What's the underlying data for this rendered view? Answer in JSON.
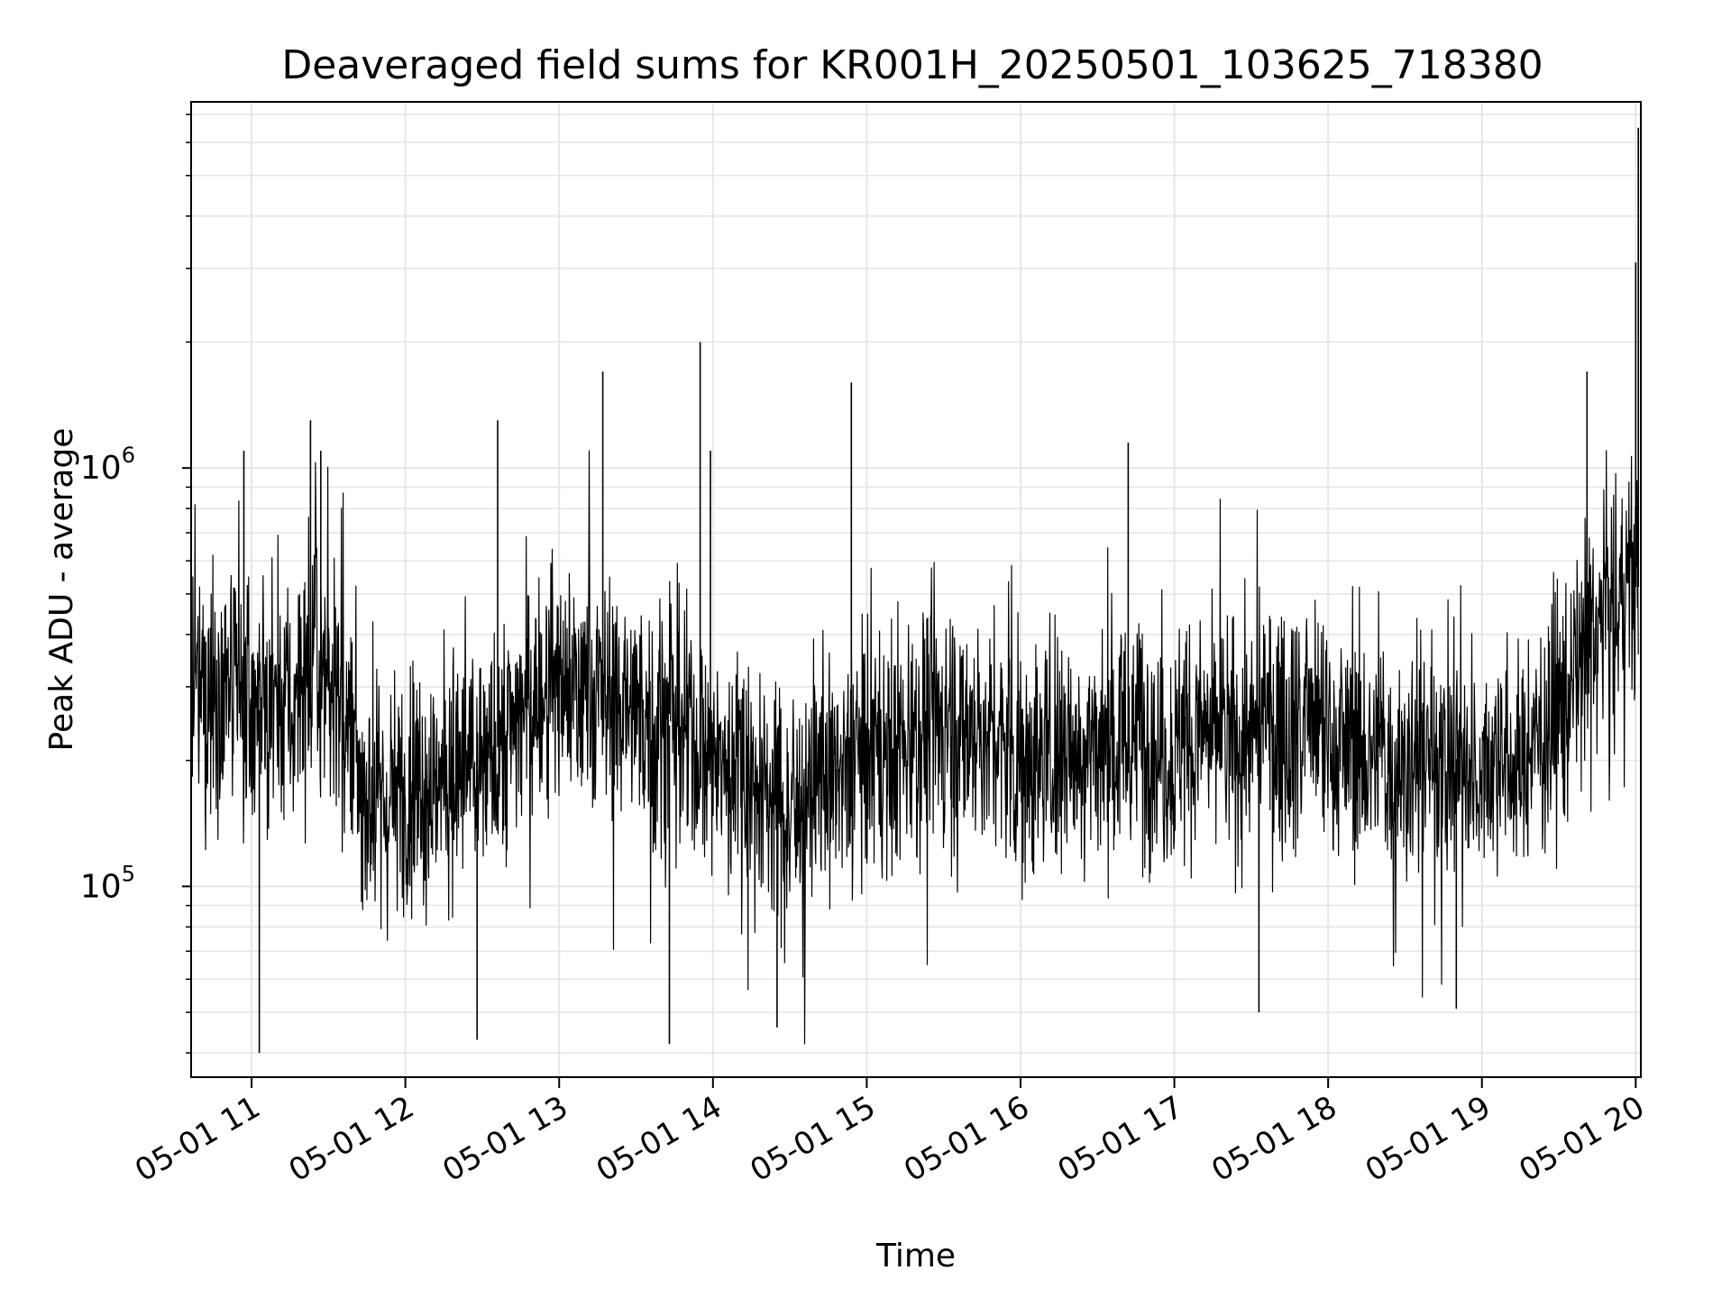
{
  "chart_data": {
    "type": "line",
    "title": "Deaveraged field sums for KR001H_20250501_103625_718380",
    "xlabel": "Time",
    "ylabel": "Peak ADU - average",
    "yscale": "log",
    "xlim": [
      "2025-05-01 10:36:25",
      "2025-05-01 20:02:00"
    ],
    "ylim": [
      35000,
      7500000
    ],
    "grid": true,
    "legend": "none",
    "line_color": "#000000",
    "x_ticks": [
      "05-01 11",
      "05-01 12",
      "05-01 13",
      "05-01 14",
      "05-01 15",
      "05-01 16",
      "05-01 17",
      "05-01 18",
      "05-01 19",
      "05-01 20"
    ],
    "y_ticks": [
      {
        "base": "10",
        "exp": "5",
        "value": 100000
      },
      {
        "base": "10",
        "exp": "6",
        "value": 1000000
      }
    ],
    "series": [
      {
        "x": [
          "2025-05-01 10:36",
          "2025-05-01 10:50",
          "2025-05-01 11:00",
          "2025-05-01 11:10",
          "2025-05-01 11:20",
          "2025-05-01 11:30",
          "2025-05-01 11:40",
          "2025-05-01 11:50",
          "2025-05-01 12:00",
          "2025-05-01 12:15",
          "2025-05-01 12:30",
          "2025-05-01 12:45",
          "2025-05-01 13:00",
          "2025-05-01 13:15",
          "2025-05-01 13:30",
          "2025-05-01 13:45",
          "2025-05-01 14:00",
          "2025-05-01 14:15",
          "2025-05-01 14:30",
          "2025-05-01 14:45",
          "2025-05-01 15:00",
          "2025-05-01 15:15",
          "2025-05-01 15:30",
          "2025-05-01 15:45",
          "2025-05-01 16:00",
          "2025-05-01 16:15",
          "2025-05-01 16:30",
          "2025-05-01 16:45",
          "2025-05-01 17:00",
          "2025-05-01 17:15",
          "2025-05-01 17:30",
          "2025-05-01 17:45",
          "2025-05-01 18:00",
          "2025-05-01 18:15",
          "2025-05-01 18:30",
          "2025-05-01 18:45",
          "2025-05-01 19:00",
          "2025-05-01 19:15",
          "2025-05-01 19:30",
          "2025-05-01 19:40",
          "2025-05-01 19:50",
          "2025-05-01 20:00"
        ],
        "values": [
          270000,
          300000,
          270000,
          250000,
          300000,
          330000,
          200000,
          150000,
          170000,
          185000,
          190000,
          260000,
          300000,
          290000,
          260000,
          240000,
          200000,
          180000,
          150000,
          180000,
          210000,
          230000,
          250000,
          230000,
          200000,
          210000,
          215000,
          235000,
          210000,
          225000,
          235000,
          245000,
          225000,
          205000,
          195000,
          200000,
          205000,
          195000,
          270000,
          360000,
          450000,
          520000
        ]
      }
    ],
    "peaks": [
      {
        "x": "2025-05-01 10:57",
        "y": 1100000
      },
      {
        "x": "2025-05-01 11:23",
        "y": 1300000
      },
      {
        "x": "2025-05-01 11:27",
        "y": 1100000
      },
      {
        "x": "2025-05-01 12:36",
        "y": 1300000
      },
      {
        "x": "2025-05-01 13:17",
        "y": 1700000
      },
      {
        "x": "2025-05-01 13:55",
        "y": 2000000
      },
      {
        "x": "2025-05-01 13:59",
        "y": 1100000
      },
      {
        "x": "2025-05-01 14:54",
        "y": 1600000
      },
      {
        "x": "2025-05-01 16:42",
        "y": 1150000
      },
      {
        "x": "2025-05-01 19:41",
        "y": 1700000
      },
      {
        "x": "2025-05-01 20:01",
        "y": 6500000
      },
      {
        "x": "2025-05-01 20:00",
        "y": 3100000
      }
    ],
    "dips": [
      {
        "x": "2025-05-01 11:03",
        "y": 40000
      },
      {
        "x": "2025-05-01 12:28",
        "y": 43000
      },
      {
        "x": "2025-05-01 13:43",
        "y": 42000
      },
      {
        "x": "2025-05-01 14:25",
        "y": 46000
      },
      {
        "x": "2025-05-01 17:33",
        "y": 50000
      },
      {
        "x": "2025-05-01 18:50",
        "y": 51000
      }
    ]
  }
}
